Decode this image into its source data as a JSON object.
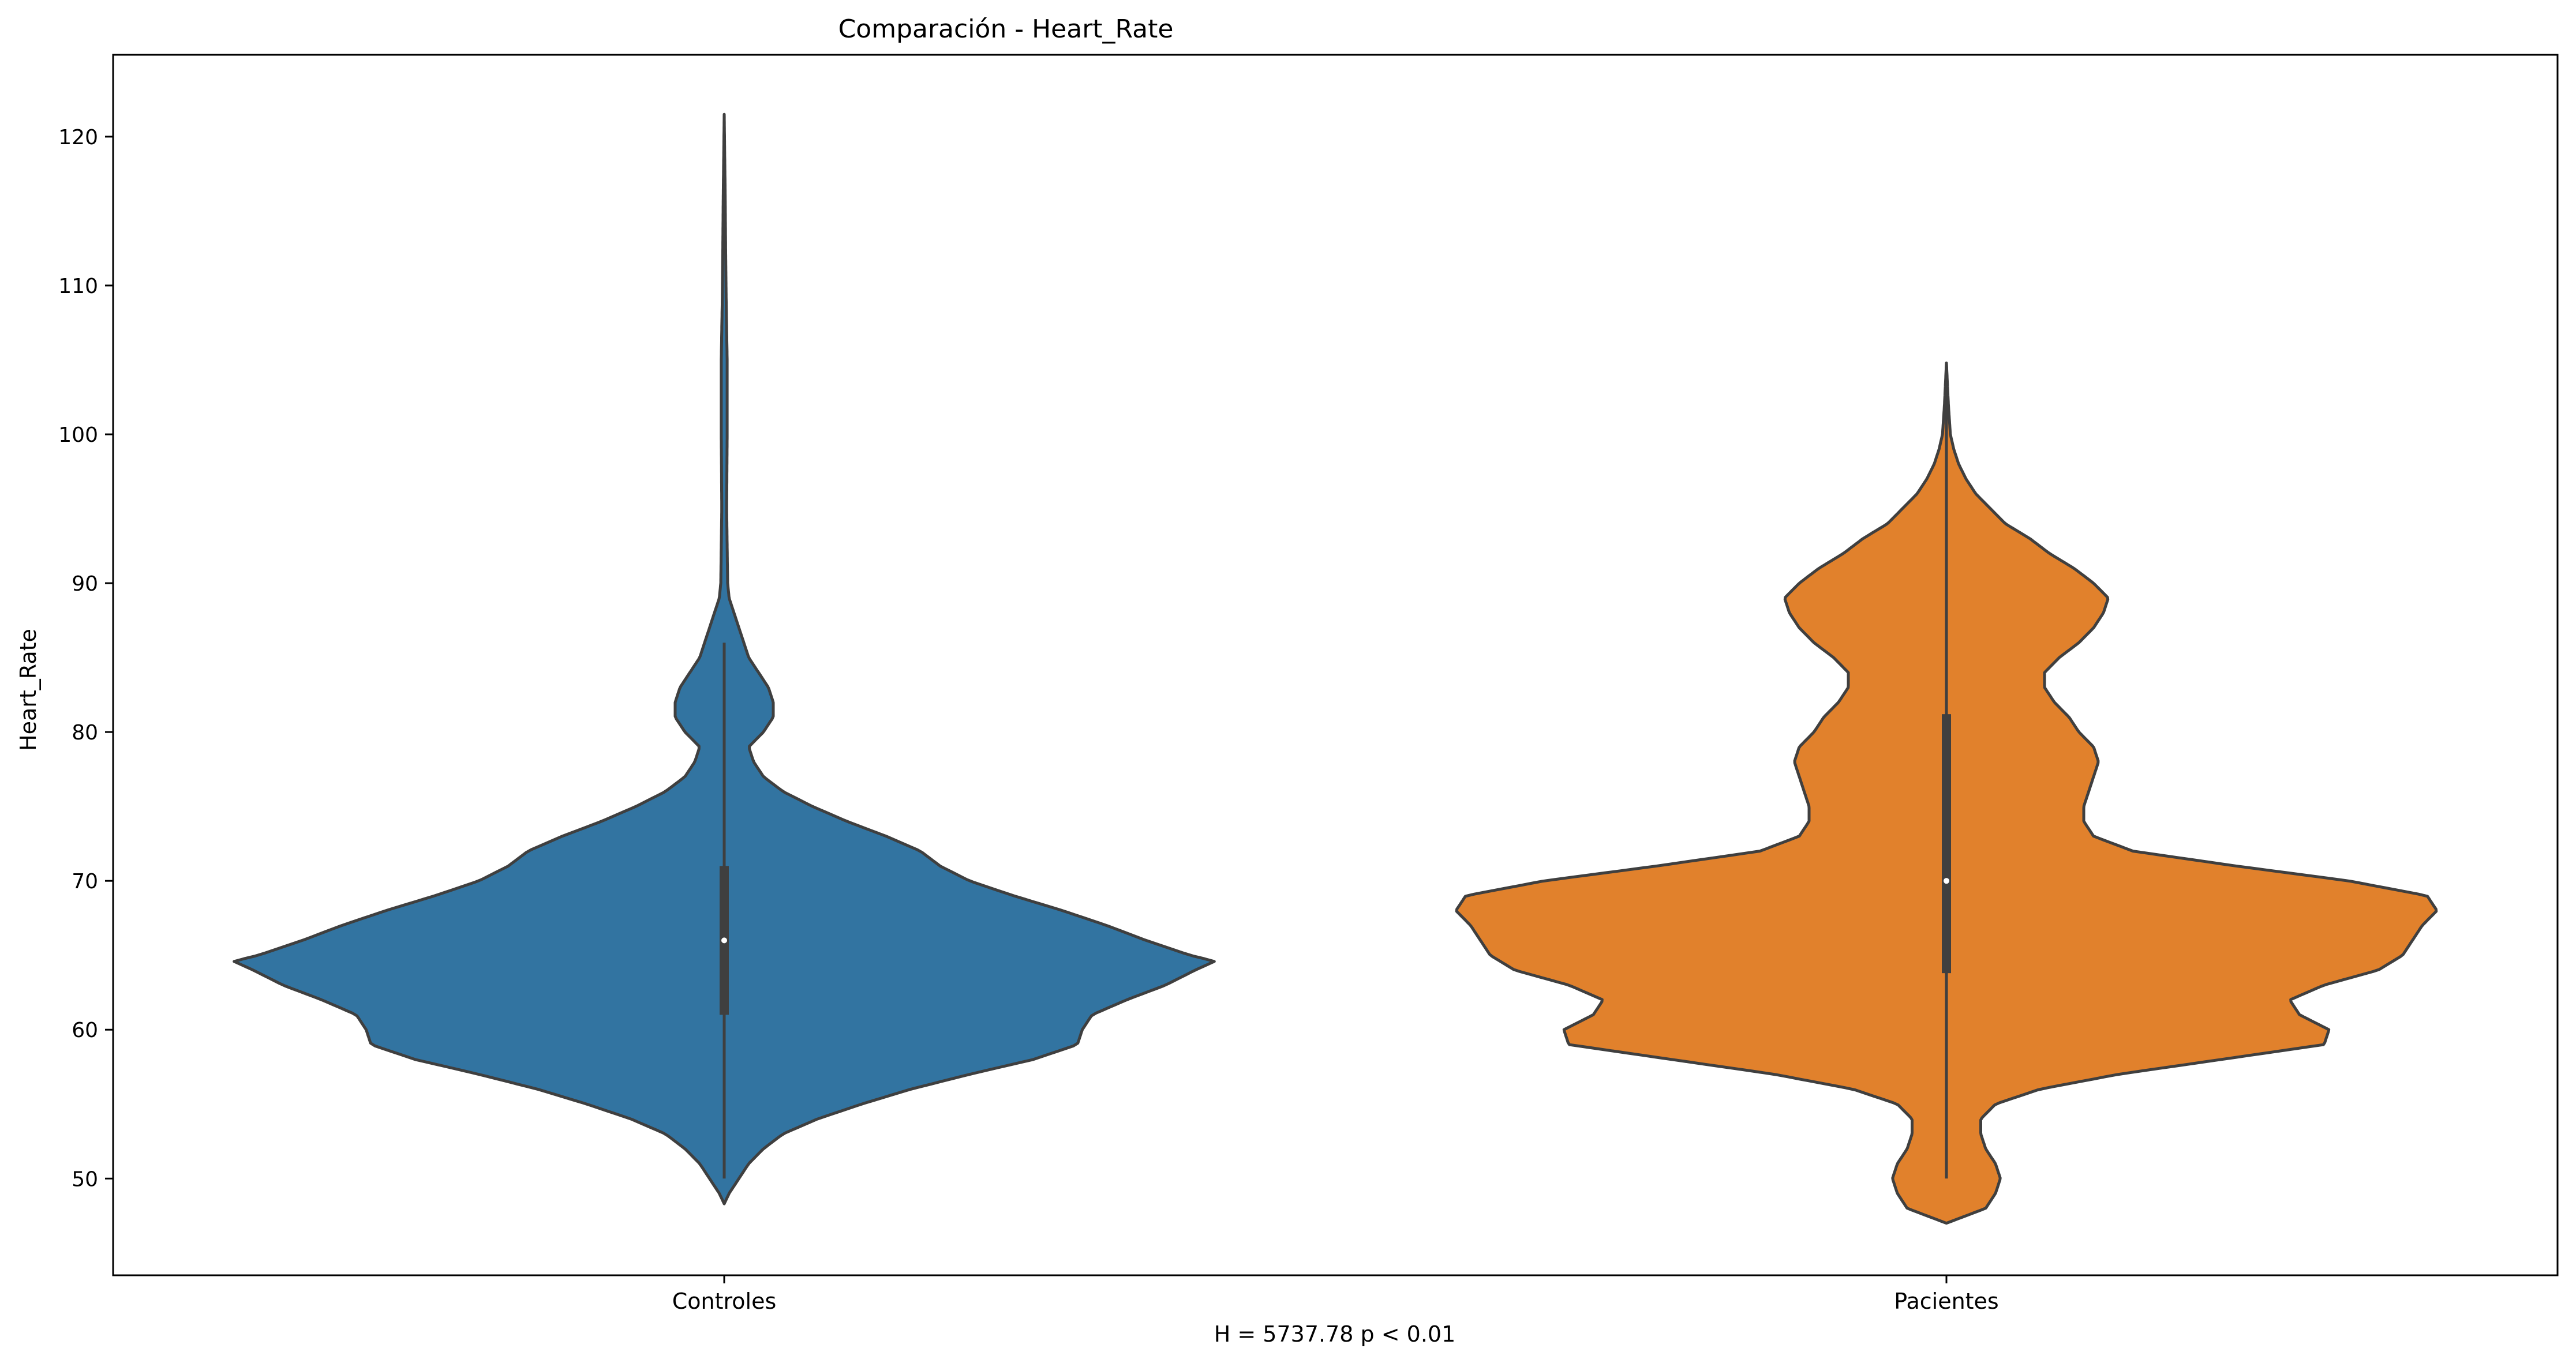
{
  "chart_data": {
    "type": "violin",
    "title": "Comparación - Heart_Rate",
    "xlabel": "H = 5737.78 p < 0.01",
    "ylabel": "Heart_Rate",
    "ylim": [
      43.5,
      125.5
    ],
    "yticks": [
      50,
      60,
      70,
      80,
      90,
      100,
      110,
      120
    ],
    "categories": [
      "Controles",
      "Pacientes"
    ],
    "grid": false,
    "legend": "none",
    "series": [
      {
        "category": "Controles",
        "color": "#3274a1",
        "min": 50,
        "q1": 61,
        "median": 66,
        "q3": 71,
        "max": 86,
        "range": [
          48.3,
          121.5
        ],
        "density_profile": [
          [
            48.3,
            0.0
          ],
          [
            49,
            0.01
          ],
          [
            50,
            0.03
          ],
          [
            51,
            0.05
          ],
          [
            52,
            0.08
          ],
          [
            53,
            0.12
          ],
          [
            54,
            0.19
          ],
          [
            55,
            0.28
          ],
          [
            56,
            0.38
          ],
          [
            57,
            0.5
          ],
          [
            58,
            0.63
          ],
          [
            59,
            0.72
          ],
          [
            60,
            0.73
          ],
          [
            61,
            0.75
          ],
          [
            62,
            0.82
          ],
          [
            63,
            0.9
          ],
          [
            64,
            0.96
          ],
          [
            64.6,
            1.0
          ],
          [
            65,
            0.95
          ],
          [
            66,
            0.86
          ],
          [
            67,
            0.78
          ],
          [
            68,
            0.69
          ],
          [
            69,
            0.59
          ],
          [
            70,
            0.5
          ],
          [
            71,
            0.44
          ],
          [
            72,
            0.4
          ],
          [
            73,
            0.33
          ],
          [
            74,
            0.25
          ],
          [
            75,
            0.18
          ],
          [
            76,
            0.12
          ],
          [
            77,
            0.08
          ],
          [
            78,
            0.06
          ],
          [
            79,
            0.05
          ],
          [
            80,
            0.08
          ],
          [
            81,
            0.1
          ],
          [
            82,
            0.1
          ],
          [
            83,
            0.09
          ],
          [
            84,
            0.07
          ],
          [
            85,
            0.05
          ],
          [
            86,
            0.04
          ],
          [
            87,
            0.03
          ],
          [
            88,
            0.02
          ],
          [
            89,
            0.01
          ],
          [
            90,
            0.007
          ],
          [
            95,
            0.005
          ],
          [
            100,
            0.006
          ],
          [
            105,
            0.006
          ],
          [
            107,
            0.005
          ],
          [
            109,
            0.004
          ],
          [
            112,
            0.003
          ],
          [
            116,
            0.002
          ],
          [
            121.5,
            0.0
          ]
        ]
      },
      {
        "category": "Pacientes",
        "color": "#e1812c",
        "min": 50,
        "q1": 63.8,
        "median": 70,
        "q3": 81.2,
        "max": 104.8,
        "range": [
          47,
          104.8
        ],
        "density_profile": [
          [
            47,
            0.0
          ],
          [
            47.5,
            0.04
          ],
          [
            48,
            0.08
          ],
          [
            49,
            0.1
          ],
          [
            50,
            0.11
          ],
          [
            51,
            0.1
          ],
          [
            52,
            0.08
          ],
          [
            53,
            0.07
          ],
          [
            54,
            0.07
          ],
          [
            55,
            0.1
          ],
          [
            56,
            0.19
          ],
          [
            57,
            0.35
          ],
          [
            58,
            0.56
          ],
          [
            59,
            0.77
          ],
          [
            60,
            0.78
          ],
          [
            61,
            0.72
          ],
          [
            62,
            0.7
          ],
          [
            63,
            0.77
          ],
          [
            64,
            0.88
          ],
          [
            65,
            0.93
          ],
          [
            66,
            0.95
          ],
          [
            67,
            0.97
          ],
          [
            68,
            1.0
          ],
          [
            69,
            0.98
          ],
          [
            70,
            0.82
          ],
          [
            71,
            0.59
          ],
          [
            72,
            0.38
          ],
          [
            73,
            0.3
          ],
          [
            74,
            0.28
          ],
          [
            75,
            0.28
          ],
          [
            76,
            0.29
          ],
          [
            77,
            0.3
          ],
          [
            78,
            0.31
          ],
          [
            79,
            0.3
          ],
          [
            80,
            0.27
          ],
          [
            81,
            0.25
          ],
          [
            82,
            0.22
          ],
          [
            83,
            0.2
          ],
          [
            84,
            0.2
          ],
          [
            85,
            0.23
          ],
          [
            86,
            0.27
          ],
          [
            87,
            0.3
          ],
          [
            88,
            0.32
          ],
          [
            89,
            0.33
          ],
          [
            90,
            0.3
          ],
          [
            91,
            0.26
          ],
          [
            92,
            0.21
          ],
          [
            93,
            0.17
          ],
          [
            94,
            0.12
          ],
          [
            95,
            0.09
          ],
          [
            96,
            0.06
          ],
          [
            97,
            0.04
          ],
          [
            98,
            0.025
          ],
          [
            99,
            0.015
          ],
          [
            100,
            0.008
          ],
          [
            102,
            0.004
          ],
          [
            104.8,
            0.0
          ]
        ]
      }
    ]
  }
}
